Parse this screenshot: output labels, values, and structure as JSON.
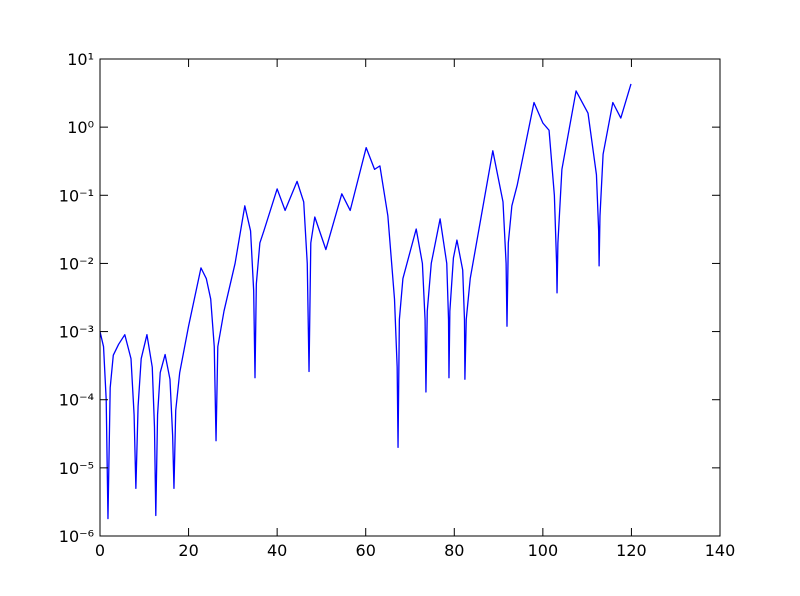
{
  "chart_data": {
    "type": "line",
    "log_y": true,
    "xlim": [
      0,
      140
    ],
    "xticks": [
      0,
      20,
      40,
      60,
      80,
      100,
      120,
      140
    ],
    "ylim": [
      1e-06,
      10
    ],
    "yticks": [
      {
        "value": 1e-06,
        "label": "10⁻⁶"
      },
      {
        "value": 1e-05,
        "label": "10⁻⁵"
      },
      {
        "value": 0.0001,
        "label": "10⁻⁴"
      },
      {
        "value": 0.001,
        "label": "10⁻³"
      },
      {
        "value": 0.01,
        "label": "10⁻²"
      },
      {
        "value": 0.1,
        "label": "10⁻¹"
      },
      {
        "value": 1,
        "label": "10⁰"
      },
      {
        "value": 10,
        "label": "10¹"
      }
    ],
    "series": [
      {
        "color": "#0000ff",
        "x": [
          0,
          0.8,
          1.4,
          1.8,
          2.3,
          3,
          4.2,
          5.6,
          7,
          7.7,
          8.1,
          8.6,
          9.3,
          10.6,
          11.8,
          12.3,
          12.6,
          13,
          13.6,
          14.7,
          15.8,
          16.4,
          16.7,
          17.1,
          18,
          20,
          22.8,
          24,
          25,
          25.8,
          26.2,
          26.6,
          28,
          30.5,
          32.7,
          34,
          34.7,
          35,
          35.3,
          36.1,
          37,
          40,
          41.8,
          44.5,
          46,
          46.8,
          47.2,
          47.6,
          48.5,
          51,
          54.6,
          56.5,
          60.1,
          62,
          63.2,
          65,
          66.5,
          67.1,
          67.3,
          67.6,
          68.4,
          71.4,
          72.8,
          73.4,
          73.6,
          73.9,
          74.8,
          76.8,
          78.3,
          78.7,
          78.8,
          79,
          79.8,
          80.6,
          81.9,
          82.3,
          82.4,
          82.7,
          83.6,
          88.7,
          91,
          91.7,
          91.9,
          92.2,
          93,
          94.2,
          98,
          100,
          101.4,
          102.6,
          103.1,
          103.2,
          103.4,
          104.3,
          107.5,
          110.2,
          112.1,
          112.6,
          112.7,
          112.9,
          113.6,
          115.8,
          117.6,
          119.9
        ],
        "values": [
          0.001,
          0.0006,
          0.0001,
          1.8e-06,
          0.00015,
          0.00045,
          0.00065,
          0.0009,
          0.0004,
          6e-05,
          5e-06,
          8e-05,
          0.0004,
          0.0009,
          0.0003,
          4e-05,
          2e-06,
          6e-05,
          0.00025,
          0.00046,
          0.0002,
          3e-05,
          5e-06,
          7e-05,
          0.00025,
          0.0012,
          0.0086,
          0.006,
          0.003,
          0.0006,
          2.5e-05,
          0.0006,
          0.002,
          0.01,
          0.07,
          0.03,
          0.004,
          0.00021,
          0.005,
          0.02,
          0.03,
          0.124,
          0.06,
          0.16,
          0.08,
          0.01,
          0.00026,
          0.02,
          0.048,
          0.016,
          0.105,
          0.06,
          0.5,
          0.24,
          0.27,
          0.05,
          0.003,
          0.0003,
          2e-05,
          0.0015,
          0.006,
          0.032,
          0.01,
          0.0015,
          0.00013,
          0.002,
          0.01,
          0.045,
          0.01,
          0.0015,
          0.00021,
          0.002,
          0.012,
          0.022,
          0.008,
          0.0015,
          0.0002,
          0.0015,
          0.006,
          0.45,
          0.08,
          0.01,
          0.0012,
          0.02,
          0.07,
          0.14,
          2.3,
          1.15,
          0.9,
          0.1,
          0.01,
          0.0037,
          0.02,
          0.24,
          3.4,
          1.6,
          0.2,
          0.03,
          0.0092,
          0.05,
          0.4,
          2.3,
          1.36,
          4.3
        ]
      }
    ]
  }
}
